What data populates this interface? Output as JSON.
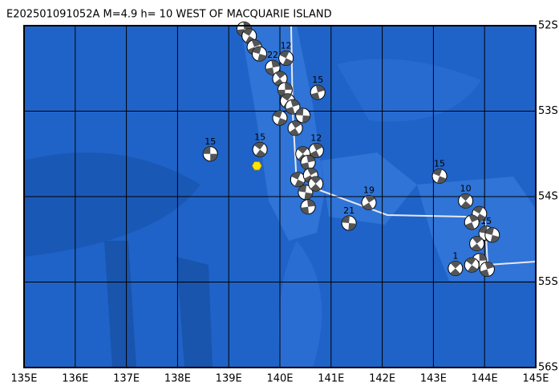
{
  "map": {
    "title": "E202501091052A  M=4.9  h= 10 WEST OF MACQUARIE ISLAND",
    "xlim": [
      135,
      145
    ],
    "ylim": [
      -56,
      -52
    ],
    "xticks": [
      {
        "value": 135,
        "label": "135E"
      },
      {
        "value": 136,
        "label": "136E"
      },
      {
        "value": 137,
        "label": "137E"
      },
      {
        "value": 138,
        "label": "138E"
      },
      {
        "value": 139,
        "label": "139E"
      },
      {
        "value": 140,
        "label": "140E"
      },
      {
        "value": 141,
        "label": "141E"
      },
      {
        "value": 142,
        "label": "142E"
      },
      {
        "value": 143,
        "label": "143E"
      },
      {
        "value": 144,
        "label": "144E"
      },
      {
        "value": 145,
        "label": "145E"
      }
    ],
    "yticks": [
      {
        "value": -52,
        "label": "52S"
      },
      {
        "value": -53,
        "label": "53S"
      },
      {
        "value": -54,
        "label": "54S"
      },
      {
        "value": -55,
        "label": "55S"
      },
      {
        "value": -56,
        "label": "56S"
      }
    ],
    "epicenter": {
      "lon": 139.55,
      "lat": -53.64
    },
    "events": [
      {
        "lon": 138.64,
        "lat": -53.5,
        "label": "15"
      },
      {
        "lon": 139.61,
        "lat": -53.45,
        "label": "15"
      },
      {
        "lon": 140.74,
        "lat": -52.78,
        "label": "15"
      },
      {
        "lon": 143.12,
        "lat": -53.76,
        "label": "15"
      },
      {
        "lon": 141.74,
        "lat": -54.07,
        "label": "19"
      },
      {
        "lon": 141.35,
        "lat": -54.31,
        "label": "21"
      },
      {
        "lon": 143.63,
        "lat": -54.05,
        "label": "10"
      },
      {
        "lon": 139.86,
        "lat": -52.49,
        "label": "22"
      },
      {
        "lon": 140.12,
        "lat": -52.38,
        "label": "12"
      },
      {
        "lon": 140.71,
        "lat": -53.46,
        "label": "12"
      },
      {
        "lon": 144.03,
        "lat": -54.43,
        "label": "15"
      },
      {
        "lon": 143.43,
        "lat": -54.84,
        "label": "1"
      },
      {
        "lon": 139.3,
        "lat": -52.04
      },
      {
        "lon": 139.4,
        "lat": -52.12
      },
      {
        "lon": 139.5,
        "lat": -52.25
      },
      {
        "lon": 139.6,
        "lat": -52.33
      },
      {
        "lon": 140.0,
        "lat": -52.62
      },
      {
        "lon": 140.1,
        "lat": -52.75
      },
      {
        "lon": 140.15,
        "lat": -52.88
      },
      {
        "lon": 140.25,
        "lat": -52.95
      },
      {
        "lon": 140.0,
        "lat": -53.08
      },
      {
        "lon": 140.3,
        "lat": -53.2
      },
      {
        "lon": 140.45,
        "lat": -53.05
      },
      {
        "lon": 140.45,
        "lat": -53.5
      },
      {
        "lon": 140.55,
        "lat": -53.6
      },
      {
        "lon": 140.35,
        "lat": -53.8
      },
      {
        "lon": 140.6,
        "lat": -53.75
      },
      {
        "lon": 140.5,
        "lat": -53.95
      },
      {
        "lon": 140.7,
        "lat": -53.85
      },
      {
        "lon": 140.55,
        "lat": -54.12
      },
      {
        "lon": 143.9,
        "lat": -54.2
      },
      {
        "lon": 143.75,
        "lat": -54.3
      },
      {
        "lon": 144.15,
        "lat": -54.45
      },
      {
        "lon": 143.85,
        "lat": -54.55
      },
      {
        "lon": 143.9,
        "lat": -54.75
      },
      {
        "lon": 143.75,
        "lat": -54.8
      },
      {
        "lon": 144.05,
        "lat": -54.85
      }
    ]
  }
}
